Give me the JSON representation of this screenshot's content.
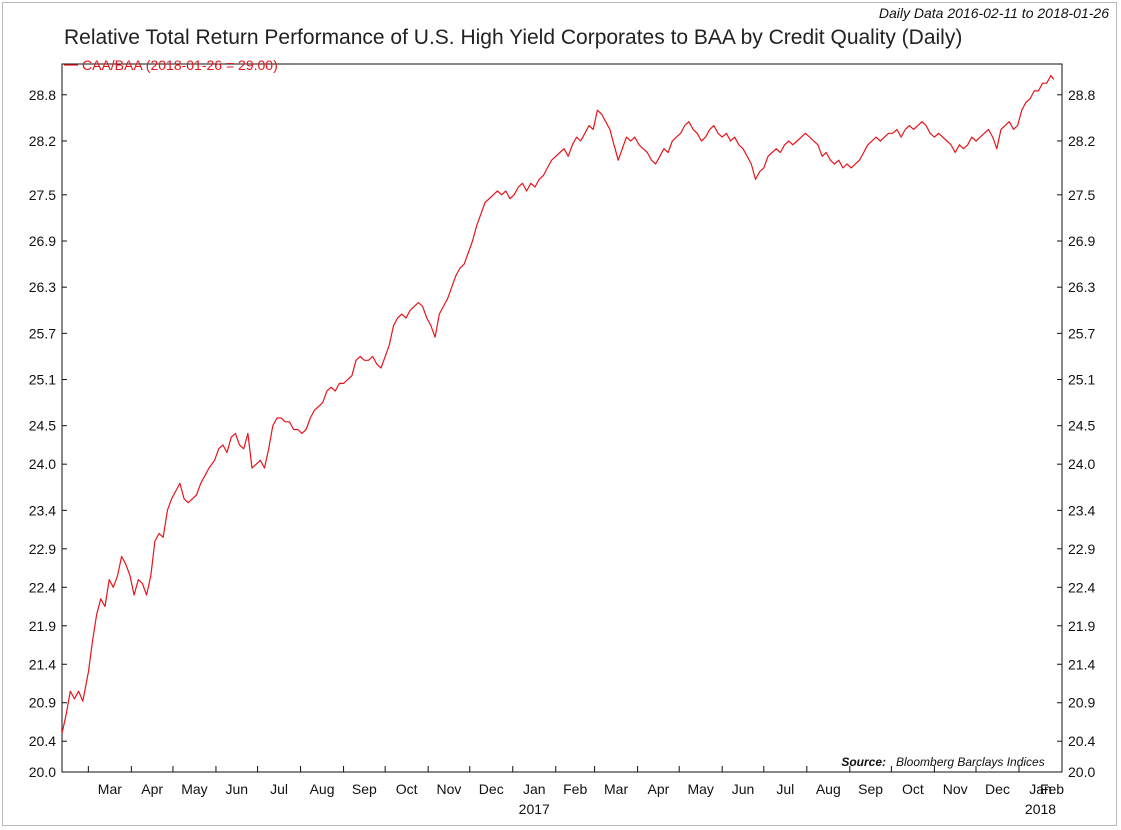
{
  "header": {
    "date_range_note": "Daily Data 2016-02-11 to 2018-01-26"
  },
  "chart_data": {
    "type": "line",
    "title": "Relative Total Return Performance of U.S. High Yield Corporates to BAA by Credit Quality (Daily)",
    "xlabel": "",
    "ylabel": "",
    "ylim": [
      20.0,
      29.2
    ],
    "yticks": [
      "20.0",
      "20.4",
      "20.9",
      "21.4",
      "21.9",
      "22.4",
      "22.9",
      "23.4",
      "24.0",
      "24.5",
      "25.1",
      "25.7",
      "26.3",
      "26.9",
      "27.5",
      "28.2",
      "28.8"
    ],
    "xlim": [
      "2016-02-11",
      "2018-02-01"
    ],
    "xticks": [
      {
        "date": "2016-03-01",
        "label": "Mar"
      },
      {
        "date": "2016-04-01",
        "label": "Apr"
      },
      {
        "date": "2016-05-01",
        "label": "May"
      },
      {
        "date": "2016-06-01",
        "label": "Jun"
      },
      {
        "date": "2016-07-01",
        "label": "Jul"
      },
      {
        "date": "2016-08-01",
        "label": "Aug"
      },
      {
        "date": "2016-09-01",
        "label": "Sep"
      },
      {
        "date": "2016-10-01",
        "label": "Oct"
      },
      {
        "date": "2016-11-01",
        "label": "Nov"
      },
      {
        "date": "2016-12-01",
        "label": "Dec"
      },
      {
        "date": "2017-01-01",
        "label": "Jan"
      },
      {
        "date": "2017-02-01",
        "label": "Feb"
      },
      {
        "date": "2017-03-01",
        "label": "Mar"
      },
      {
        "date": "2017-04-01",
        "label": "Apr"
      },
      {
        "date": "2017-05-01",
        "label": "May"
      },
      {
        "date": "2017-06-01",
        "label": "Jun"
      },
      {
        "date": "2017-07-01",
        "label": "Jul"
      },
      {
        "date": "2017-08-01",
        "label": "Aug"
      },
      {
        "date": "2017-09-01",
        "label": "Sep"
      },
      {
        "date": "2017-10-01",
        "label": "Oct"
      },
      {
        "date": "2017-11-01",
        "label": "Nov"
      },
      {
        "date": "2017-12-01",
        "label": "Dec"
      },
      {
        "date": "2018-01-01",
        "label": "Jan"
      },
      {
        "date": "2018-02-01",
        "label": "Feb"
      }
    ],
    "year_labels": [
      {
        "date": "2017-01-01",
        "label": "2017"
      },
      {
        "date": "2018-01-01",
        "label": "2018"
      }
    ],
    "legend": {
      "label": "CAA/BAA (2018-01-26 = 29.00)",
      "placement": "top-left"
    },
    "source_prefix": "Source:",
    "source": "Bloomberg Barclays Indices",
    "grid": false,
    "series": [
      {
        "name": "CAA/BAA",
        "color": "#e8141b",
        "points": [
          [
            "2016-02-11",
            20.5
          ],
          [
            "2016-02-14",
            20.75
          ],
          [
            "2016-02-17",
            21.05
          ],
          [
            "2016-02-20",
            20.95
          ],
          [
            "2016-02-23",
            21.05
          ],
          [
            "2016-02-26",
            20.92
          ],
          [
            "2016-03-01",
            21.3
          ],
          [
            "2016-03-04",
            21.7
          ],
          [
            "2016-03-07",
            22.05
          ],
          [
            "2016-03-10",
            22.25
          ],
          [
            "2016-03-13",
            22.15
          ],
          [
            "2016-03-16",
            22.5
          ],
          [
            "2016-03-19",
            22.4
          ],
          [
            "2016-03-22",
            22.55
          ],
          [
            "2016-03-25",
            22.8
          ],
          [
            "2016-03-28",
            22.7
          ],
          [
            "2016-03-31",
            22.55
          ],
          [
            "2016-04-03",
            22.3
          ],
          [
            "2016-04-06",
            22.5
          ],
          [
            "2016-04-09",
            22.45
          ],
          [
            "2016-04-12",
            22.3
          ],
          [
            "2016-04-15",
            22.55
          ],
          [
            "2016-04-18",
            23.0
          ],
          [
            "2016-04-21",
            23.1
          ],
          [
            "2016-04-24",
            23.05
          ],
          [
            "2016-04-27",
            23.4
          ],
          [
            "2016-04-30",
            23.55
          ],
          [
            "2016-05-03",
            23.65
          ],
          [
            "2016-05-06",
            23.75
          ],
          [
            "2016-05-09",
            23.55
          ],
          [
            "2016-05-12",
            23.5
          ],
          [
            "2016-05-15",
            23.55
          ],
          [
            "2016-05-18",
            23.6
          ],
          [
            "2016-05-21",
            23.75
          ],
          [
            "2016-05-24",
            23.85
          ],
          [
            "2016-05-27",
            23.95
          ],
          [
            "2016-05-31",
            24.05
          ],
          [
            "2016-06-03",
            24.2
          ],
          [
            "2016-06-06",
            24.25
          ],
          [
            "2016-06-09",
            24.15
          ],
          [
            "2016-06-12",
            24.35
          ],
          [
            "2016-06-15",
            24.4
          ],
          [
            "2016-06-18",
            24.25
          ],
          [
            "2016-06-21",
            24.2
          ],
          [
            "2016-06-24",
            24.4
          ],
          [
            "2016-06-27",
            23.95
          ],
          [
            "2016-06-30",
            24.0
          ],
          [
            "2016-07-03",
            24.05
          ],
          [
            "2016-07-06",
            23.95
          ],
          [
            "2016-07-09",
            24.2
          ],
          [
            "2016-07-12",
            24.5
          ],
          [
            "2016-07-15",
            24.6
          ],
          [
            "2016-07-18",
            24.6
          ],
          [
            "2016-07-21",
            24.55
          ],
          [
            "2016-07-24",
            24.55
          ],
          [
            "2016-07-27",
            24.45
          ],
          [
            "2016-07-30",
            24.45
          ],
          [
            "2016-08-02",
            24.4
          ],
          [
            "2016-08-05",
            24.45
          ],
          [
            "2016-08-08",
            24.6
          ],
          [
            "2016-08-11",
            24.7
          ],
          [
            "2016-08-14",
            24.75
          ],
          [
            "2016-08-17",
            24.8
          ],
          [
            "2016-08-20",
            24.95
          ],
          [
            "2016-08-23",
            25.0
          ],
          [
            "2016-08-26",
            24.95
          ],
          [
            "2016-08-29",
            25.05
          ],
          [
            "2016-09-01",
            25.05
          ],
          [
            "2016-09-04",
            25.1
          ],
          [
            "2016-09-07",
            25.15
          ],
          [
            "2016-09-10",
            25.35
          ],
          [
            "2016-09-13",
            25.4
          ],
          [
            "2016-09-16",
            25.35
          ],
          [
            "2016-09-19",
            25.35
          ],
          [
            "2016-09-22",
            25.4
          ],
          [
            "2016-09-25",
            25.3
          ],
          [
            "2016-09-28",
            25.25
          ],
          [
            "2016-10-01",
            25.4
          ],
          [
            "2016-10-04",
            25.55
          ],
          [
            "2016-10-07",
            25.8
          ],
          [
            "2016-10-10",
            25.9
          ],
          [
            "2016-10-13",
            25.95
          ],
          [
            "2016-10-16",
            25.9
          ],
          [
            "2016-10-19",
            26.0
          ],
          [
            "2016-10-22",
            26.05
          ],
          [
            "2016-10-25",
            26.1
          ],
          [
            "2016-10-28",
            26.05
          ],
          [
            "2016-10-31",
            25.9
          ],
          [
            "2016-11-03",
            25.8
          ],
          [
            "2016-11-06",
            25.65
          ],
          [
            "2016-11-09",
            25.95
          ],
          [
            "2016-11-12",
            26.05
          ],
          [
            "2016-11-15",
            26.15
          ],
          [
            "2016-11-18",
            26.3
          ],
          [
            "2016-11-21",
            26.45
          ],
          [
            "2016-11-24",
            26.55
          ],
          [
            "2016-11-27",
            26.6
          ],
          [
            "2016-11-30",
            26.75
          ],
          [
            "2016-12-03",
            26.9
          ],
          [
            "2016-12-06",
            27.1
          ],
          [
            "2016-12-09",
            27.25
          ],
          [
            "2016-12-12",
            27.4
          ],
          [
            "2016-12-15",
            27.45
          ],
          [
            "2016-12-18",
            27.5
          ],
          [
            "2016-12-21",
            27.55
          ],
          [
            "2016-12-24",
            27.5
          ],
          [
            "2016-12-27",
            27.55
          ],
          [
            "2016-12-30",
            27.45
          ],
          [
            "2017-01-02",
            27.5
          ],
          [
            "2017-01-05",
            27.6
          ],
          [
            "2017-01-08",
            27.65
          ],
          [
            "2017-01-11",
            27.55
          ],
          [
            "2017-01-14",
            27.65
          ],
          [
            "2017-01-17",
            27.6
          ],
          [
            "2017-01-20",
            27.7
          ],
          [
            "2017-01-23",
            27.75
          ],
          [
            "2017-01-26",
            27.85
          ],
          [
            "2017-01-29",
            27.95
          ],
          [
            "2017-02-01",
            28.0
          ],
          [
            "2017-02-04",
            28.05
          ],
          [
            "2017-02-07",
            28.1
          ],
          [
            "2017-02-10",
            28.0
          ],
          [
            "2017-02-13",
            28.15
          ],
          [
            "2017-02-16",
            28.25
          ],
          [
            "2017-02-19",
            28.2
          ],
          [
            "2017-02-22",
            28.3
          ],
          [
            "2017-02-25",
            28.4
          ],
          [
            "2017-02-28",
            28.35
          ],
          [
            "2017-03-03",
            28.6
          ],
          [
            "2017-03-06",
            28.55
          ],
          [
            "2017-03-09",
            28.45
          ],
          [
            "2017-03-12",
            28.35
          ],
          [
            "2017-03-15",
            28.15
          ],
          [
            "2017-03-18",
            27.95
          ],
          [
            "2017-03-21",
            28.1
          ],
          [
            "2017-03-24",
            28.25
          ],
          [
            "2017-03-27",
            28.2
          ],
          [
            "2017-03-30",
            28.25
          ],
          [
            "2017-04-02",
            28.15
          ],
          [
            "2017-04-05",
            28.1
          ],
          [
            "2017-04-08",
            28.05
          ],
          [
            "2017-04-11",
            27.95
          ],
          [
            "2017-04-14",
            27.9
          ],
          [
            "2017-04-17",
            28.0
          ],
          [
            "2017-04-20",
            28.1
          ],
          [
            "2017-04-23",
            28.05
          ],
          [
            "2017-04-26",
            28.2
          ],
          [
            "2017-04-29",
            28.25
          ],
          [
            "2017-05-02",
            28.3
          ],
          [
            "2017-05-05",
            28.4
          ],
          [
            "2017-05-08",
            28.45
          ],
          [
            "2017-05-11",
            28.35
          ],
          [
            "2017-05-14",
            28.3
          ],
          [
            "2017-05-17",
            28.2
          ],
          [
            "2017-05-20",
            28.25
          ],
          [
            "2017-05-23",
            28.35
          ],
          [
            "2017-05-26",
            28.4
          ],
          [
            "2017-05-29",
            28.3
          ],
          [
            "2017-06-01",
            28.25
          ],
          [
            "2017-06-04",
            28.3
          ],
          [
            "2017-06-07",
            28.2
          ],
          [
            "2017-06-10",
            28.25
          ],
          [
            "2017-06-13",
            28.15
          ],
          [
            "2017-06-16",
            28.1
          ],
          [
            "2017-06-19",
            28.0
          ],
          [
            "2017-06-22",
            27.9
          ],
          [
            "2017-06-25",
            27.7
          ],
          [
            "2017-06-28",
            27.8
          ],
          [
            "2017-07-01",
            27.85
          ],
          [
            "2017-07-04",
            28.0
          ],
          [
            "2017-07-07",
            28.05
          ],
          [
            "2017-07-10",
            28.1
          ],
          [
            "2017-07-13",
            28.05
          ],
          [
            "2017-07-16",
            28.15
          ],
          [
            "2017-07-19",
            28.2
          ],
          [
            "2017-07-22",
            28.15
          ],
          [
            "2017-07-25",
            28.2
          ],
          [
            "2017-07-28",
            28.25
          ],
          [
            "2017-07-31",
            28.3
          ],
          [
            "2017-08-03",
            28.25
          ],
          [
            "2017-08-06",
            28.2
          ],
          [
            "2017-08-09",
            28.15
          ],
          [
            "2017-08-12",
            28.0
          ],
          [
            "2017-08-15",
            28.05
          ],
          [
            "2017-08-18",
            27.95
          ],
          [
            "2017-08-21",
            27.9
          ],
          [
            "2017-08-24",
            27.95
          ],
          [
            "2017-08-27",
            27.85
          ],
          [
            "2017-08-30",
            27.9
          ],
          [
            "2017-09-02",
            27.85
          ],
          [
            "2017-09-05",
            27.9
          ],
          [
            "2017-09-08",
            27.95
          ],
          [
            "2017-09-11",
            28.05
          ],
          [
            "2017-09-14",
            28.15
          ],
          [
            "2017-09-17",
            28.2
          ],
          [
            "2017-09-20",
            28.25
          ],
          [
            "2017-09-23",
            28.2
          ],
          [
            "2017-09-26",
            28.25
          ],
          [
            "2017-09-29",
            28.3
          ],
          [
            "2017-10-02",
            28.3
          ],
          [
            "2017-10-05",
            28.35
          ],
          [
            "2017-10-08",
            28.25
          ],
          [
            "2017-10-11",
            28.35
          ],
          [
            "2017-10-14",
            28.4
          ],
          [
            "2017-10-17",
            28.35
          ],
          [
            "2017-10-20",
            28.4
          ],
          [
            "2017-10-23",
            28.45
          ],
          [
            "2017-10-26",
            28.4
          ],
          [
            "2017-10-29",
            28.3
          ],
          [
            "2017-11-01",
            28.25
          ],
          [
            "2017-11-04",
            28.3
          ],
          [
            "2017-11-07",
            28.25
          ],
          [
            "2017-11-10",
            28.2
          ],
          [
            "2017-11-13",
            28.15
          ],
          [
            "2017-11-16",
            28.05
          ],
          [
            "2017-11-19",
            28.15
          ],
          [
            "2017-11-22",
            28.1
          ],
          [
            "2017-11-25",
            28.15
          ],
          [
            "2017-11-28",
            28.25
          ],
          [
            "2017-12-01",
            28.2
          ],
          [
            "2017-12-04",
            28.25
          ],
          [
            "2017-12-07",
            28.3
          ],
          [
            "2017-12-10",
            28.35
          ],
          [
            "2017-12-13",
            28.25
          ],
          [
            "2017-12-16",
            28.1
          ],
          [
            "2017-12-19",
            28.35
          ],
          [
            "2017-12-22",
            28.4
          ],
          [
            "2017-12-25",
            28.45
          ],
          [
            "2017-12-28",
            28.35
          ],
          [
            "2017-12-31",
            28.4
          ],
          [
            "2018-01-03",
            28.6
          ],
          [
            "2018-01-06",
            28.7
          ],
          [
            "2018-01-09",
            28.75
          ],
          [
            "2018-01-12",
            28.85
          ],
          [
            "2018-01-15",
            28.85
          ],
          [
            "2018-01-18",
            28.95
          ],
          [
            "2018-01-21",
            28.95
          ],
          [
            "2018-01-24",
            29.05
          ],
          [
            "2018-01-26",
            29.0
          ]
        ]
      }
    ]
  }
}
